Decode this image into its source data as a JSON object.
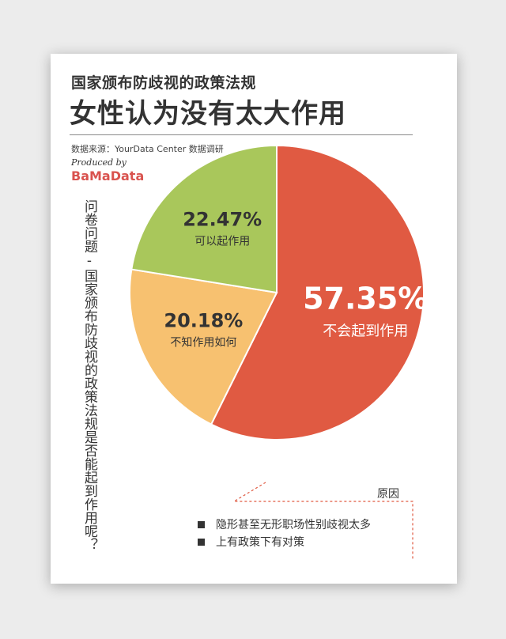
{
  "header": {
    "title_line1": "国家颁布防歧视的政策法规",
    "title_line2": "女性认为没有太大作用",
    "source": "数据来源：YourData Center 数据调研",
    "produced_by": "Produced by",
    "brand": "BaMaData"
  },
  "question": "问卷问题-国家颁布防歧视的政策法规是否能起到作用呢？",
  "reasons": {
    "title": "原因",
    "items": [
      "隐形甚至无形职场性别歧视太多",
      "上有政策下有对策"
    ]
  },
  "colors": {
    "red": "#e05a42",
    "orange": "#f7c170",
    "green": "#a9c75b",
    "text_dark": "#333333",
    "brand": "#d9534f"
  },
  "chart_data": {
    "type": "pie",
    "slices": [
      {
        "label": "不会起到作用",
        "value": 57.35,
        "display": "57.35%",
        "color": "#e05a42"
      },
      {
        "label": "不知作用如何",
        "value": 20.18,
        "display": "20.18%",
        "color": "#f7c170"
      },
      {
        "label": "可以起作用",
        "value": 22.47,
        "display": "22.47%",
        "color": "#a9c75b"
      }
    ],
    "start": "12 o'clock",
    "direction": "clockwise"
  }
}
